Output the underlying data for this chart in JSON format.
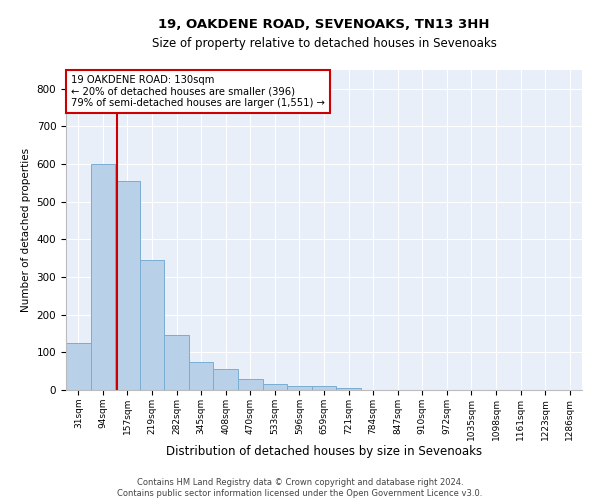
{
  "title1": "19, OAKDENE ROAD, SEVENOAKS, TN13 3HH",
  "title2": "Size of property relative to detached houses in Sevenoaks",
  "xlabel": "Distribution of detached houses by size in Sevenoaks",
  "ylabel": "Number of detached properties",
  "bar_values": [
    125,
    600,
    555,
    345,
    145,
    75,
    55,
    30,
    15,
    10,
    10,
    5,
    0,
    0,
    0,
    0,
    0,
    0,
    0,
    0,
    0
  ],
  "bar_labels": [
    "31sqm",
    "94sqm",
    "157sqm",
    "219sqm",
    "282sqm",
    "345sqm",
    "408sqm",
    "470sqm",
    "533sqm",
    "596sqm",
    "659sqm",
    "721sqm",
    "784sqm",
    "847sqm",
    "910sqm",
    "972sqm",
    "1035sqm",
    "1098sqm",
    "1161sqm",
    "1223sqm",
    "1286sqm"
  ],
  "bar_color": "#b8d0e8",
  "bar_edge_color": "#7aadd4",
  "bg_color": "#e8eff8",
  "grid_color": "#ffffff",
  "ylim": [
    0,
    850
  ],
  "yticks": [
    0,
    100,
    200,
    300,
    400,
    500,
    600,
    700,
    800
  ],
  "vline_color": "#cc0000",
  "annotation_text": "19 OAKDENE ROAD: 130sqm\n← 20% of detached houses are smaller (396)\n79% of semi-detached houses are larger (1,551) →",
  "annotation_box_color": "#cc0000",
  "footer1": "Contains HM Land Registry data © Crown copyright and database right 2024.",
  "footer2": "Contains public sector information licensed under the Open Government Licence v3.0."
}
